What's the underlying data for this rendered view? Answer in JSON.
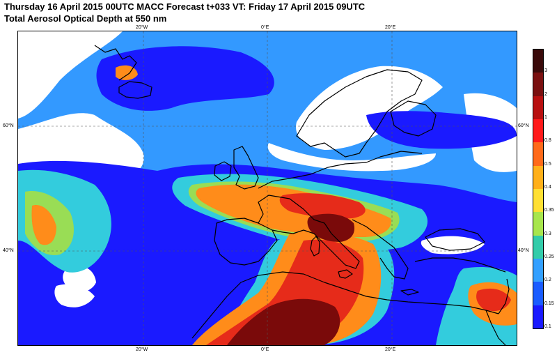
{
  "header": {
    "title_line1": "Thursday 16 April 2015 00UTC MACC Forecast t+033 VT: Friday 17 April 2015 09UTC",
    "title_line2": "Total Aerosol Optical Depth at 550 nm"
  },
  "map": {
    "lon_labels": [
      "20°W",
      "0°E",
      "20°E"
    ],
    "lat_labels": [
      "60°N",
      "40°N"
    ]
  },
  "colorbar": {
    "levels": [
      "3",
      "2",
      "1",
      "0.8",
      "0.5",
      "0.4",
      "0.35",
      "0.3",
      "0.25",
      "0.2",
      "0.15",
      "0.1"
    ],
    "colors": [
      "#3a0a0a",
      "#7a1010",
      "#b81010",
      "#ff1a1a",
      "#ff6a1a",
      "#ffb01a",
      "#ffe033",
      "#a8e64d",
      "#33ccaa",
      "#33a0ff",
      "#1a5cff",
      "#1a1aff"
    ]
  },
  "fields": {
    "color_light": "#3399ff",
    "color_blue": "#1a1aff",
    "color_cyan": "#33ccdd",
    "color_green": "#99dd55",
    "color_orange": "#ff8c1a",
    "color_red": "#e62b1a",
    "color_dark": "#7a0a0a",
    "color_land": "#ffffff"
  }
}
